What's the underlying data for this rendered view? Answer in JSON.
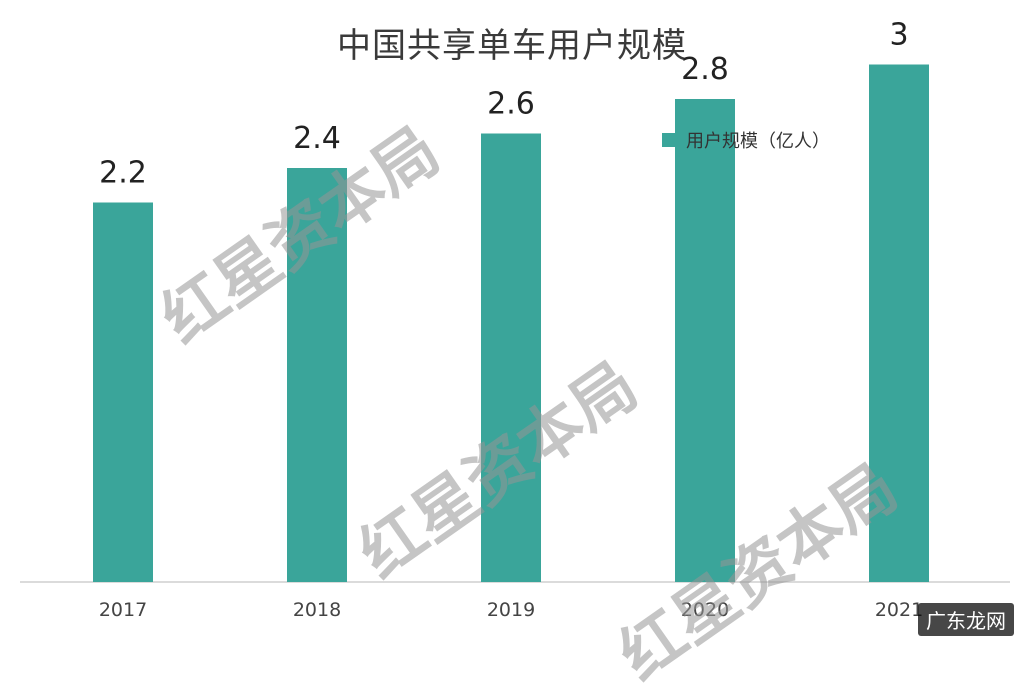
{
  "chart_data": {
    "type": "bar",
    "title": "中国共享单车用户规模",
    "categories": [
      "2017",
      "2018",
      "2019",
      "2020",
      "2021"
    ],
    "series": [
      {
        "name": "用户规模（亿人）",
        "values": [
          2.2,
          2.4,
          2.6,
          2.8,
          3
        ]
      }
    ],
    "value_labels": [
      "2.2",
      "2.4",
      "2.6",
      "2.8",
      "3"
    ],
    "ylim": [
      0,
      3.2
    ],
    "grid": false,
    "legend_position": "top-right",
    "bar_color": "#3aa59a"
  },
  "watermark": {
    "text": "红星资本局"
  },
  "site_badge": "广东龙网"
}
